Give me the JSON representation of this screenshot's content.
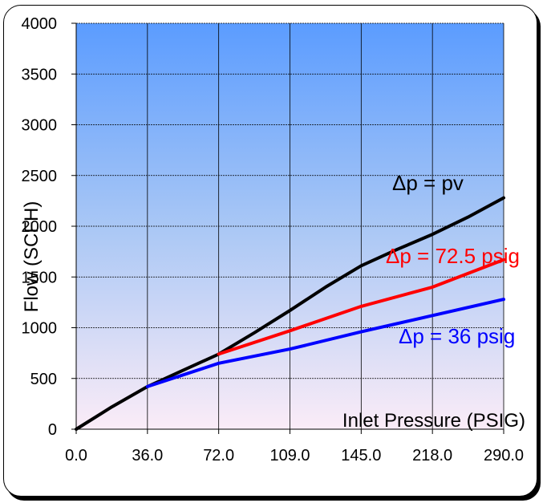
{
  "chart_data": {
    "type": "line",
    "title": "",
    "xlabel": "Inlet Pressure (PSIG)",
    "ylabel": "Flow (SCFH)",
    "categories": [
      "0.0",
      "36.0",
      "72.0",
      "109.0",
      "145.0",
      "218.0",
      "290.0"
    ],
    "ylim": [
      0,
      4000
    ],
    "yticks": [
      0,
      500,
      1000,
      1500,
      2000,
      2500,
      3000,
      3500,
      4000
    ],
    "grid": true,
    "legend": "none",
    "series": [
      {
        "name": "Δp = pv",
        "color": "#000000",
        "points": [
          [
            0,
            0
          ],
          [
            0.5,
            220
          ],
          [
            1,
            420
          ],
          [
            1.5,
            580
          ],
          [
            2,
            740
          ],
          [
            2.5,
            950
          ],
          [
            3,
            1170
          ],
          [
            3.5,
            1400
          ],
          [
            4,
            1610
          ],
          [
            4.5,
            1770
          ],
          [
            5,
            1920
          ],
          [
            5.5,
            2090
          ],
          [
            6,
            2280
          ]
        ]
      },
      {
        "name": "Δp = 72.5 psig",
        "color": "#ff0000",
        "points": [
          [
            2,
            740
          ],
          [
            3,
            970
          ],
          [
            4,
            1210
          ],
          [
            5,
            1400
          ],
          [
            6,
            1670
          ]
        ]
      },
      {
        "name": "Δp = 36 psig",
        "color": "#0000ff",
        "points": [
          [
            1,
            420
          ],
          [
            2,
            650
          ],
          [
            3,
            790
          ],
          [
            4,
            960
          ],
          [
            5,
            1120
          ],
          [
            6,
            1280
          ]
        ]
      }
    ]
  }
}
